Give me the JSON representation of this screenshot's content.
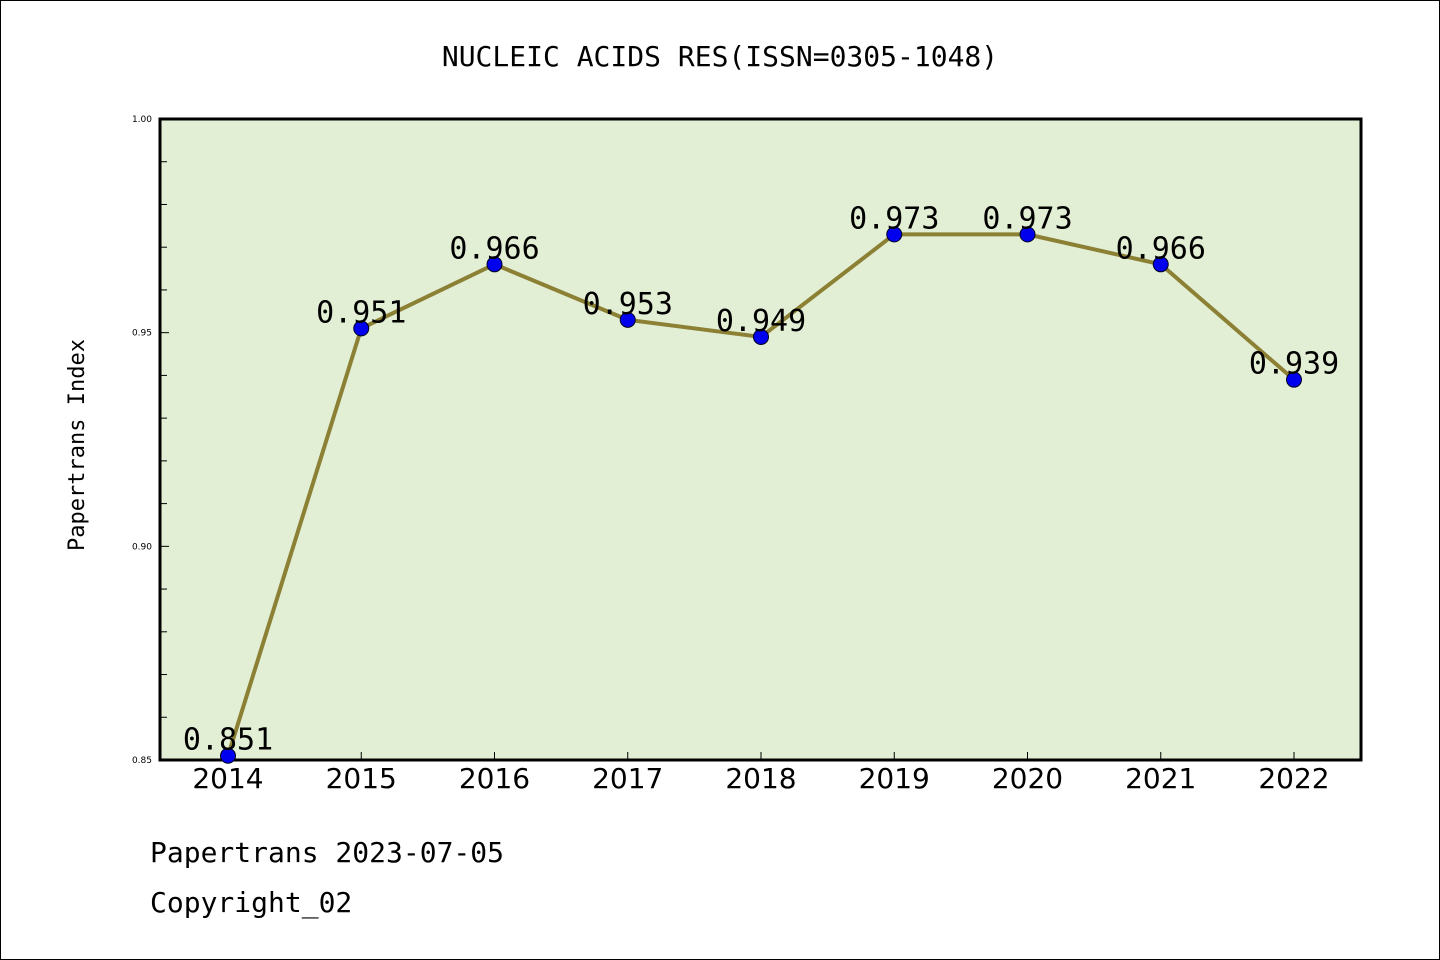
{
  "chart_data": {
    "type": "line",
    "title": "NUCLEIC ACIDS RES(ISSN=0305-1048)",
    "xlabel": "",
    "ylabel": "Papertrans Index",
    "categories": [
      "2014",
      "2015",
      "2016",
      "2017",
      "2018",
      "2019",
      "2020",
      "2021",
      "2022"
    ],
    "series": [
      {
        "values": [
          0.851,
          0.951,
          0.966,
          0.953,
          0.949,
          0.973,
          0.973,
          0.966,
          0.939
        ],
        "labels": [
          "0.851",
          "0.951",
          "0.966",
          "0.953",
          "0.949",
          "0.973",
          "0.973",
          "0.966",
          "0.939"
        ]
      }
    ],
    "ylim": [
      0.85,
      1.0
    ],
    "yticks": [
      "0.85",
      "0.90",
      "0.95",
      "1.00"
    ],
    "grid": false,
    "legend": "none",
    "colors": {
      "plot_background": "#e2efd5",
      "line": "#8b8034",
      "marker": "#0000ee"
    }
  },
  "footer": {
    "line1": "Papertrans 2023-07-05",
    "line2": "Copyright_02"
  }
}
